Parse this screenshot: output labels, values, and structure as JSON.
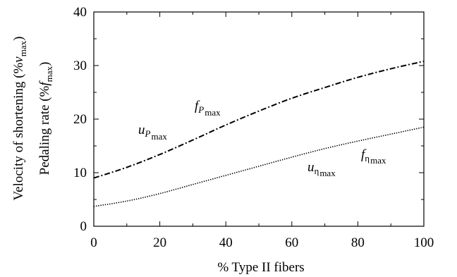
{
  "chart_data": {
    "type": "line",
    "xlabel": "% Type II fibers",
    "ylabel_outer": {
      "main": "Velocity of shortening (%",
      "var": "v",
      "sub": "max",
      "close": ")"
    },
    "ylabel_inner": {
      "main": "Pedaling rate (%",
      "var": "f",
      "sub": "max",
      "close": ")"
    },
    "xlim": [
      0,
      100
    ],
    "ylim": [
      0,
      40
    ],
    "x_ticks": [
      0,
      20,
      40,
      60,
      80,
      100
    ],
    "y_ticks": [
      0,
      10,
      20,
      30,
      40
    ],
    "grid": false,
    "series": [
      {
        "style": "dash-dot",
        "x": [
          0,
          10,
          20,
          30,
          40,
          50,
          60,
          70,
          80,
          90,
          100
        ],
        "y": [
          9.0,
          11.0,
          13.4,
          16.1,
          18.9,
          21.5,
          23.9,
          25.9,
          27.8,
          29.4,
          30.8
        ],
        "labels": [
          {
            "var": "u",
            "sub": "P",
            "subsub": "max"
          },
          {
            "var": "f",
            "sub": "P",
            "subsub": "max"
          }
        ]
      },
      {
        "style": "dotted",
        "x": [
          0,
          10,
          20,
          30,
          40,
          50,
          60,
          70,
          80,
          90,
          100
        ],
        "y": [
          3.7,
          4.7,
          6.1,
          7.8,
          9.5,
          11.2,
          12.9,
          14.5,
          15.9,
          17.2,
          18.5
        ],
        "labels": [
          {
            "var": "u",
            "sub": "η",
            "subsub": "max"
          },
          {
            "var": "f",
            "sub": "η",
            "subsub": "max"
          }
        ]
      }
    ]
  }
}
